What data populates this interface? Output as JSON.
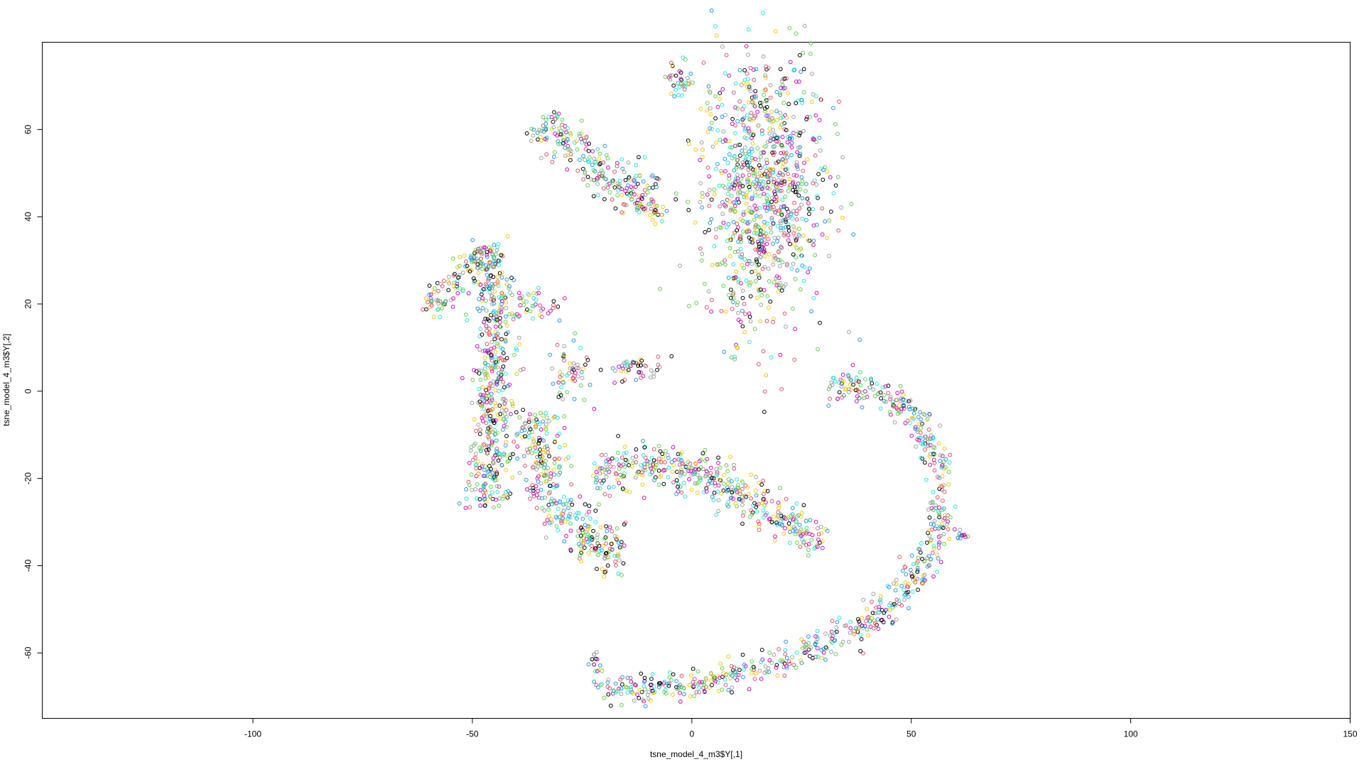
{
  "chart_data": {
    "type": "scatter",
    "title": "",
    "xlabel": "tsne_model_4_m3$Y[,1]",
    "ylabel": "tsne_model_4_m3$Y[,2]",
    "xlim": [
      -148,
      150
    ],
    "ylim": [
      -75,
      80
    ],
    "xticks": [
      -100,
      -50,
      0,
      50,
      100,
      150
    ],
    "yticks": [
      -60,
      -40,
      -20,
      0,
      20,
      40,
      60
    ],
    "xtick_labels": [
      "-100",
      "-50",
      "0",
      "50",
      "100",
      "150"
    ],
    "ytick_labels": [
      "-60",
      "-40",
      "-20",
      "0",
      "20",
      "40",
      "60"
    ],
    "grid": false,
    "legend": "none",
    "marker": "open-circle",
    "palette": [
      "#000000",
      "#DF536B",
      "#61D04F",
      "#2297E6",
      "#28E2E5",
      "#CD0BBC",
      "#F5C710",
      "#9E9E9E"
    ],
    "clusters": [
      {
        "shape": "blob",
        "center": [
          -3,
          71
        ],
        "spread": [
          2.0,
          2.5
        ],
        "count": 35
      },
      {
        "shape": "path",
        "path": [
          [
            -34,
            62
          ],
          [
            -29,
            57
          ],
          [
            -22,
            52
          ],
          [
            -16,
            48
          ],
          [
            -10,
            44
          ],
          [
            -8,
            39
          ]
        ],
        "width": 2.6,
        "count": 260
      },
      {
        "shape": "blob",
        "center": [
          16,
          46
        ],
        "spread": [
          7.0,
          15.0
        ],
        "count": 950
      },
      {
        "shape": "path",
        "path": [
          [
            -60,
            18
          ],
          [
            -57,
            22
          ],
          [
            -53,
            26
          ],
          [
            -49,
            31
          ],
          [
            -47,
            33
          ]
        ],
        "width": 1.6,
        "count": 90
      },
      {
        "shape": "path",
        "path": [
          [
            -48,
            33
          ],
          [
            -45,
            26
          ],
          [
            -44,
            18
          ],
          [
            -45,
            10
          ],
          [
            -45,
            3
          ],
          [
            -46,
            -5
          ],
          [
            -45,
            -13
          ],
          [
            -47,
            -20
          ],
          [
            -46,
            -26
          ]
        ],
        "width": 2.4,
        "count": 520
      },
      {
        "shape": "blob",
        "center": [
          -35,
          20
        ],
        "spread": [
          2.5,
          2.0
        ],
        "count": 35
      },
      {
        "shape": "blob",
        "center": [
          -27,
          4
        ],
        "spread": [
          2.0,
          4.0
        ],
        "count": 55
      },
      {
        "shape": "blob",
        "center": [
          -12,
          5
        ],
        "spread": [
          3.0,
          1.5
        ],
        "count": 45
      },
      {
        "shape": "path",
        "path": [
          [
            -36,
            -5
          ],
          [
            -35,
            -13
          ],
          [
            -33,
            -20
          ],
          [
            -30,
            -26
          ],
          [
            -27,
            -32
          ],
          [
            -22,
            -36
          ],
          [
            -15,
            -38
          ]
        ],
        "width": 2.6,
        "count": 330
      },
      {
        "shape": "path",
        "path": [
          [
            -22,
            -19
          ],
          [
            -12,
            -17
          ],
          [
            -2,
            -18
          ],
          [
            8,
            -22
          ],
          [
            15,
            -26
          ],
          [
            22,
            -30
          ],
          [
            30,
            -34
          ]
        ],
        "width": 2.4,
        "count": 420
      },
      {
        "shape": "path",
        "path": [
          [
            31,
            1
          ],
          [
            40,
            1
          ],
          [
            48,
            -3
          ],
          [
            54,
            -10
          ],
          [
            57,
            -20
          ],
          [
            57,
            -30
          ],
          [
            54,
            -38
          ],
          [
            48,
            -46
          ],
          [
            40,
            -53
          ],
          [
            30,
            -58
          ],
          [
            20,
            -62
          ],
          [
            10,
            -65
          ],
          [
            0,
            -67
          ],
          [
            -10,
            -68
          ],
          [
            -22,
            -68
          ]
        ],
        "width": 1.6,
        "count": 680
      },
      {
        "shape": "blob",
        "center": [
          61.5,
          -33
        ],
        "spread": [
          0.8,
          1.2
        ],
        "count": 10
      },
      {
        "shape": "blob",
        "center": [
          -22,
          -63
        ],
        "spread": [
          0.8,
          1.5
        ],
        "count": 14
      }
    ]
  }
}
